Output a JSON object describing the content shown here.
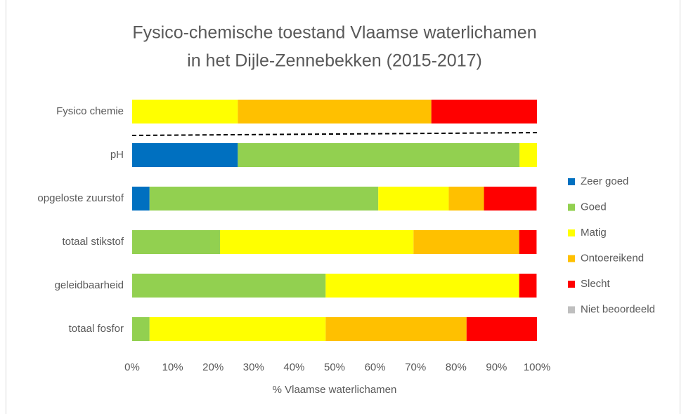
{
  "chart_data": {
    "type": "stacked_bar_horizontal",
    "title": [
      "Fysico-chemische toestand Vlaamse waterlichamen",
      "in het Dijle-Zennebekken (2015-2017)"
    ],
    "x_label": "% Vlaamse waterlichamen",
    "categories": [
      "Fysico chemie",
      "pH",
      "opgeloste zuurstof",
      "totaal stikstof",
      "geleidbaarheid",
      "totaal fosfor"
    ],
    "series": [
      {
        "name": "Zeer goed",
        "color": "#0070c0",
        "values": [
          0,
          26.1,
          4.3,
          0,
          0,
          0
        ]
      },
      {
        "name": "Goed",
        "color": "#92d050",
        "values": [
          0,
          69.6,
          56.5,
          21.7,
          47.8,
          4.3
        ]
      },
      {
        "name": "Matig",
        "color": "#ffff00",
        "values": [
          26.1,
          4.3,
          17.4,
          47.8,
          47.8,
          43.5
        ]
      },
      {
        "name": "Ontoereikend",
        "color": "#ffc000",
        "values": [
          47.8,
          0,
          8.7,
          26.1,
          0,
          34.8
        ]
      },
      {
        "name": "Slecht",
        "color": "#ff0000",
        "values": [
          26.1,
          0,
          13.0,
          4.3,
          4.3,
          17.4
        ]
      },
      {
        "name": "Niet beoordeeld",
        "color": "#bfbfbf",
        "values": [
          0,
          0,
          0,
          0,
          0,
          0
        ]
      }
    ],
    "xlim": [
      0,
      100
    ],
    "xticks": [
      {
        "value": 0,
        "label": "0%"
      },
      {
        "value": 10,
        "label": "10%"
      },
      {
        "value": 20,
        "label": "20%"
      },
      {
        "value": 30,
        "label": "30%"
      },
      {
        "value": 40,
        "label": "40%"
      },
      {
        "value": 50,
        "label": "50%"
      },
      {
        "value": 60,
        "label": "60%"
      },
      {
        "value": 70,
        "label": "70%"
      },
      {
        "value": 80,
        "label": "80%"
      },
      {
        "value": 90,
        "label": "90%"
      },
      {
        "value": 100,
        "label": "100%"
      }
    ],
    "grid": false,
    "legend": "right"
  }
}
